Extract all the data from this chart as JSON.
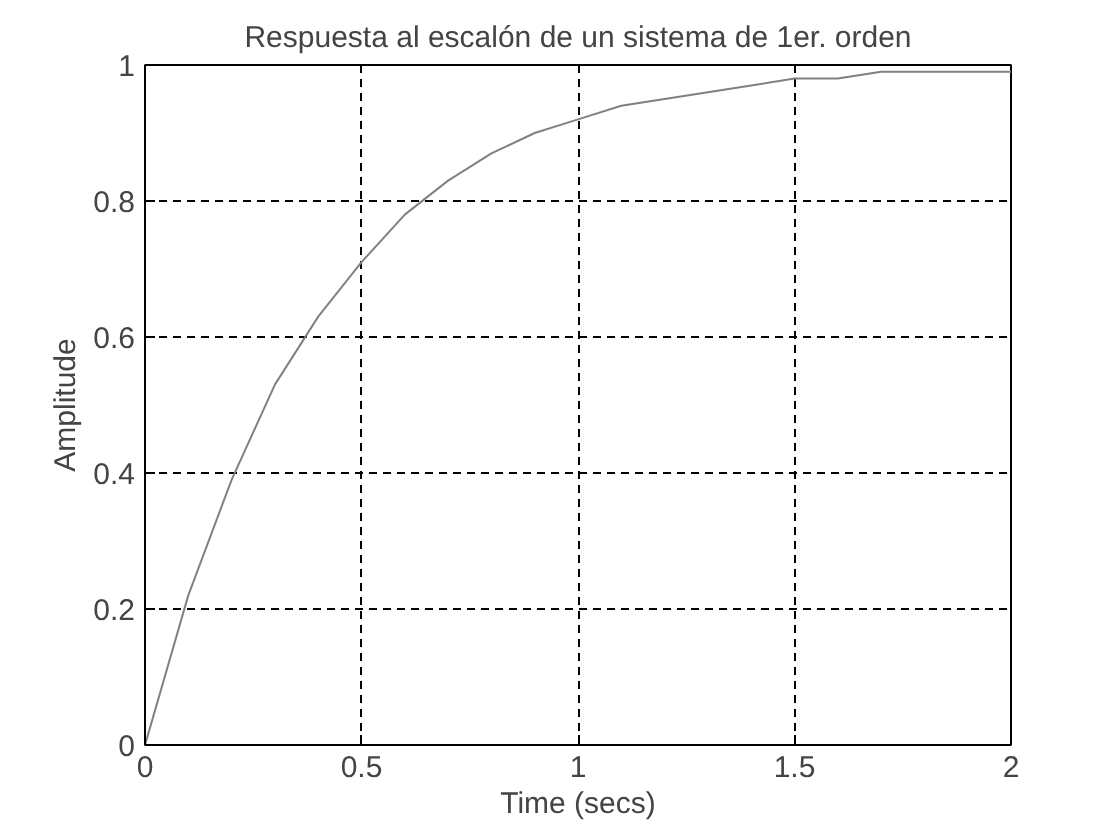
{
  "chart_data": {
    "type": "line",
    "title": "Respuesta al escalón de un sistema de 1er. orden",
    "xlabel": "Time (secs)",
    "ylabel": "Amplitude",
    "x": [
      0,
      0.1,
      0.2,
      0.3,
      0.4,
      0.5,
      0.6,
      0.7,
      0.8,
      0.9,
      1.0,
      1.1,
      1.2,
      1.3,
      1.4,
      1.5,
      1.6,
      1.7,
      1.8,
      1.9,
      2.0
    ],
    "series": [
      {
        "color": "#808080",
        "values": [
          0,
          0.22,
          0.39,
          0.53,
          0.63,
          0.71,
          0.78,
          0.83,
          0.87,
          0.9,
          0.92,
          0.94,
          0.95,
          0.96,
          0.97,
          0.98,
          0.98,
          0.99,
          0.99,
          0.99,
          0.99
        ]
      }
    ],
    "xlim": [
      0,
      2
    ],
    "ylim": [
      0,
      1
    ],
    "xticks": [
      0,
      0.5,
      1,
      1.5,
      2
    ],
    "yticks": [
      0,
      0.2,
      0.4,
      0.6,
      0.8,
      1
    ],
    "grid": true,
    "line_style": "solid",
    "marker": "none"
  }
}
